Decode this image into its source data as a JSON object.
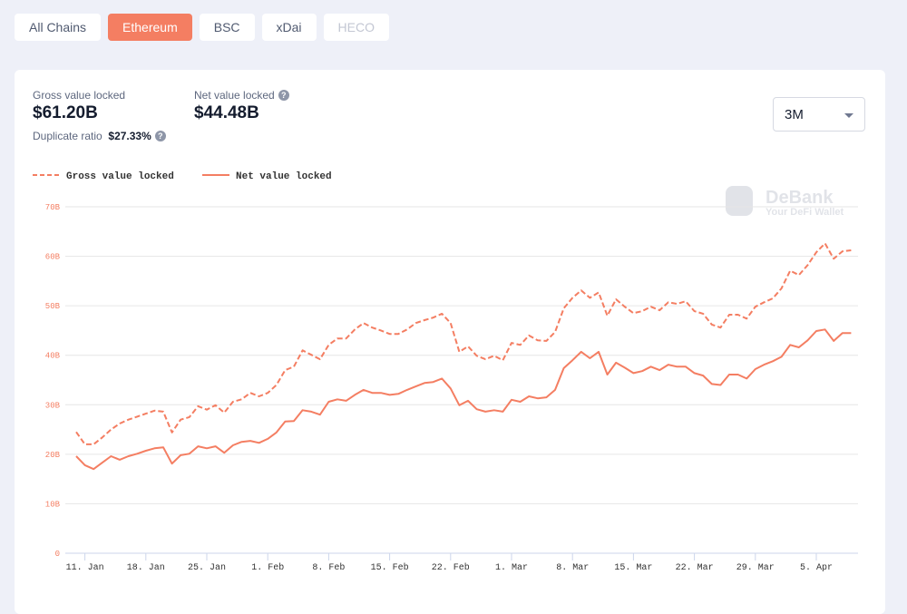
{
  "tabs": [
    {
      "label": "All Chains"
    },
    {
      "label": "Ethereum",
      "active": true
    },
    {
      "label": "BSC"
    },
    {
      "label": "xDai"
    },
    {
      "label": "HECO",
      "disabled": true
    }
  ],
  "stats": {
    "gross_label": "Gross value locked",
    "gross_value": "$61.20B",
    "net_label": "Net value locked",
    "net_value": "$44.48B",
    "dup_label": "Duplicate ratio",
    "dup_value": "$27.33%"
  },
  "range_select": "3M",
  "watermark": {
    "brand": "DeBank",
    "tagline": "Your DeFi Wallet"
  },
  "chart_data": {
    "type": "line",
    "categories": [
      null,
      "11. Jan",
      null,
      null,
      null,
      null,
      null,
      null,
      "18. Jan",
      null,
      null,
      null,
      null,
      null,
      null,
      "25. Jan",
      null,
      null,
      null,
      null,
      null,
      null,
      "1. Feb",
      null,
      null,
      null,
      null,
      null,
      null,
      "8. Feb",
      null,
      null,
      null,
      null,
      null,
      null,
      "15. Feb",
      null,
      null,
      null,
      null,
      null,
      null,
      "22. Feb",
      null,
      null,
      null,
      null,
      null,
      null,
      "1. Mar",
      null,
      null,
      null,
      null,
      null,
      null,
      "8. Mar",
      null,
      null,
      null,
      null,
      null,
      null,
      "15. Mar",
      null,
      null,
      null,
      null,
      null,
      null,
      "22. Mar",
      null,
      null,
      null,
      null,
      null,
      null,
      "29. Mar",
      null,
      null,
      null,
      null,
      null,
      null,
      "5. Apr",
      null,
      null,
      null,
      null
    ],
    "series": [
      {
        "name": "Gross value locked",
        "color": "#f47e62",
        "dashed": true,
        "values": [
          24.5,
          22,
          22,
          23.4,
          25,
          26.2,
          27,
          27.6,
          28.2,
          28.8,
          28.6,
          24.4,
          27,
          27.5,
          29.7,
          29,
          29.9,
          28.4,
          30.6,
          31.1,
          32.4,
          31.7,
          32.4,
          34,
          37,
          37.7,
          41,
          40.1,
          39.2,
          42.1,
          43.4,
          43.4,
          45.2,
          46.5,
          45.6,
          45,
          44.3,
          44.3,
          45.2,
          46.5,
          47.1,
          47.6,
          48.4,
          46.5,
          40.7,
          41.8,
          39.9,
          39.2,
          39.9,
          39,
          42.5,
          42.1,
          44,
          43,
          42.9,
          44.7,
          49.5,
          51.6,
          53.1,
          51.6,
          52.7,
          48,
          51.3,
          49.8,
          48.5,
          48.9,
          49.8,
          49.1,
          50.7,
          50.4,
          50.9,
          48.9,
          48.4,
          46.2,
          45.6,
          48.2,
          48.2,
          47.4,
          49.8,
          50.7,
          51.5,
          53.5,
          57.1,
          56.2,
          58.2,
          60.8,
          62.6,
          59.5,
          61,
          61.2
        ]
      },
      {
        "name": "Net value locked",
        "color": "#f47e62",
        "dashed": false,
        "values": [
          19.6,
          17.8,
          17,
          18.3,
          19.6,
          18.9,
          19.6,
          20.1,
          20.7,
          21.2,
          21.4,
          18.1,
          19.8,
          20.1,
          21.6,
          21.2,
          21.6,
          20.3,
          21.8,
          22.5,
          22.7,
          22.3,
          23.1,
          24.4,
          26.6,
          26.7,
          28.9,
          28.6,
          28,
          30.6,
          31.1,
          30.8,
          32,
          33,
          32.4,
          32.4,
          32,
          32.2,
          33,
          33.7,
          34.4,
          34.6,
          35.3,
          33.3,
          29.9,
          30.8,
          29.1,
          28.6,
          28.9,
          28.6,
          31,
          30.6,
          31.7,
          31.3,
          31.5,
          33,
          37.4,
          39,
          40.7,
          39.4,
          40.7,
          36.1,
          38.5,
          37.5,
          36.4,
          36.8,
          37.7,
          37,
          38.1,
          37.7,
          37.7,
          36.4,
          35.9,
          34.2,
          34,
          36.1,
          36.1,
          35.3,
          37.2,
          38.1,
          38.8,
          39.7,
          42.1,
          41.6,
          43,
          44.9,
          45.2,
          42.9,
          44.5,
          44.5
        ]
      }
    ],
    "ylim": [
      0,
      70
    ],
    "yticks": [
      0,
      {
        "value": 10,
        "label": "10B"
      },
      {
        "value": 20,
        "label": "20B"
      },
      {
        "value": 30,
        "label": "30B"
      },
      {
        "value": 40,
        "label": "40B"
      },
      {
        "value": 50,
        "label": "50B"
      },
      {
        "value": 60,
        "label": "60B"
      },
      {
        "value": 70,
        "label": "70B"
      }
    ],
    "grid": true,
    "legend": "top-left"
  }
}
